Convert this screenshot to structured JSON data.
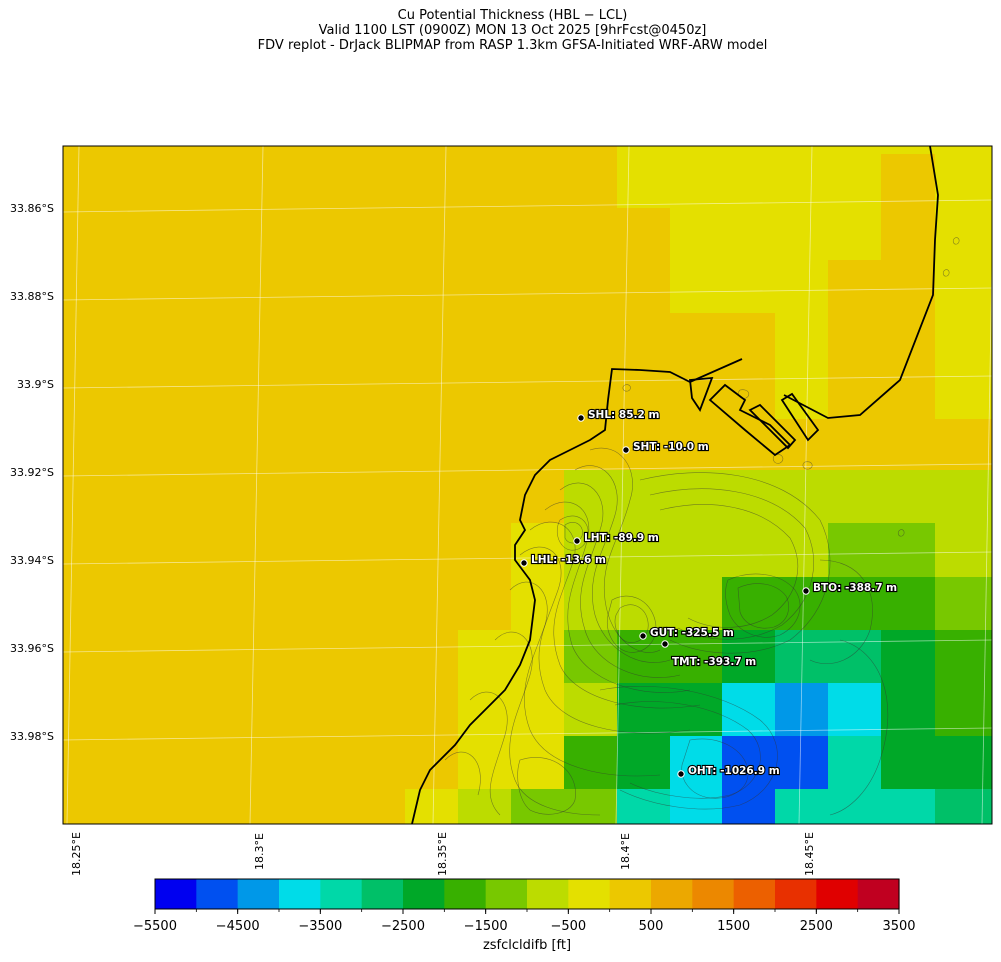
{
  "titles": [
    "Cu Potential Thickness (HBL − LCL)",
    "Valid 1100 LST (0900Z) MON 13 Oct 2025 [9hrFcst@0450z]",
    "FDV replot - DrJack BLIPMAP from RASP 1.3km GFSA-Initiated WRF-ARW model"
  ],
  "map": {
    "lat_labels": [
      "33.86°S",
      "33.88°S",
      "33.9°S",
      "33.92°S",
      "33.94°S",
      "33.96°S",
      "33.98°S"
    ],
    "lon_labels": [
      "18.25°E",
      "18.3°E",
      "18.35°E",
      "18.4°E",
      "18.45°E"
    ],
    "stations": [
      {
        "id": "SHL",
        "label": "SHL: 85.2 m"
      },
      {
        "id": "SHT",
        "label": "SHT: -10.0 m"
      },
      {
        "id": "LHT",
        "label": "LHT: -89.9 m"
      },
      {
        "id": "LHL",
        "label": "LHL: -13.6 m"
      },
      {
        "id": "BTO",
        "label": "BTO: -388.7 m"
      },
      {
        "id": "GUT",
        "label": "GUT: -325.5 m"
      },
      {
        "id": "TMT",
        "label": "TMT: -393.7 m"
      },
      {
        "id": "OHT",
        "label": "OHT: -1026.9 m"
      }
    ]
  },
  "colorbar": {
    "label": "zsfclcldifb [ft]",
    "min": -5500,
    "max": 3500,
    "step": 500,
    "tick_labels": [
      "−5500",
      "−4500",
      "−3500",
      "−2500",
      "−1500",
      "−500",
      "500",
      "1500",
      "2500",
      "3500"
    ],
    "colors": [
      "#0000f0",
      "#0050f0",
      "#0098e8",
      "#00dce8",
      "#00d8a8",
      "#00c068",
      "#00a828",
      "#38b000",
      "#78c800",
      "#bcdc00",
      "#e4e000",
      "#ecc800",
      "#eca800",
      "#ec8800",
      "#ec6000",
      "#e83000",
      "#e00000",
      "#c00020"
    ]
  }
}
